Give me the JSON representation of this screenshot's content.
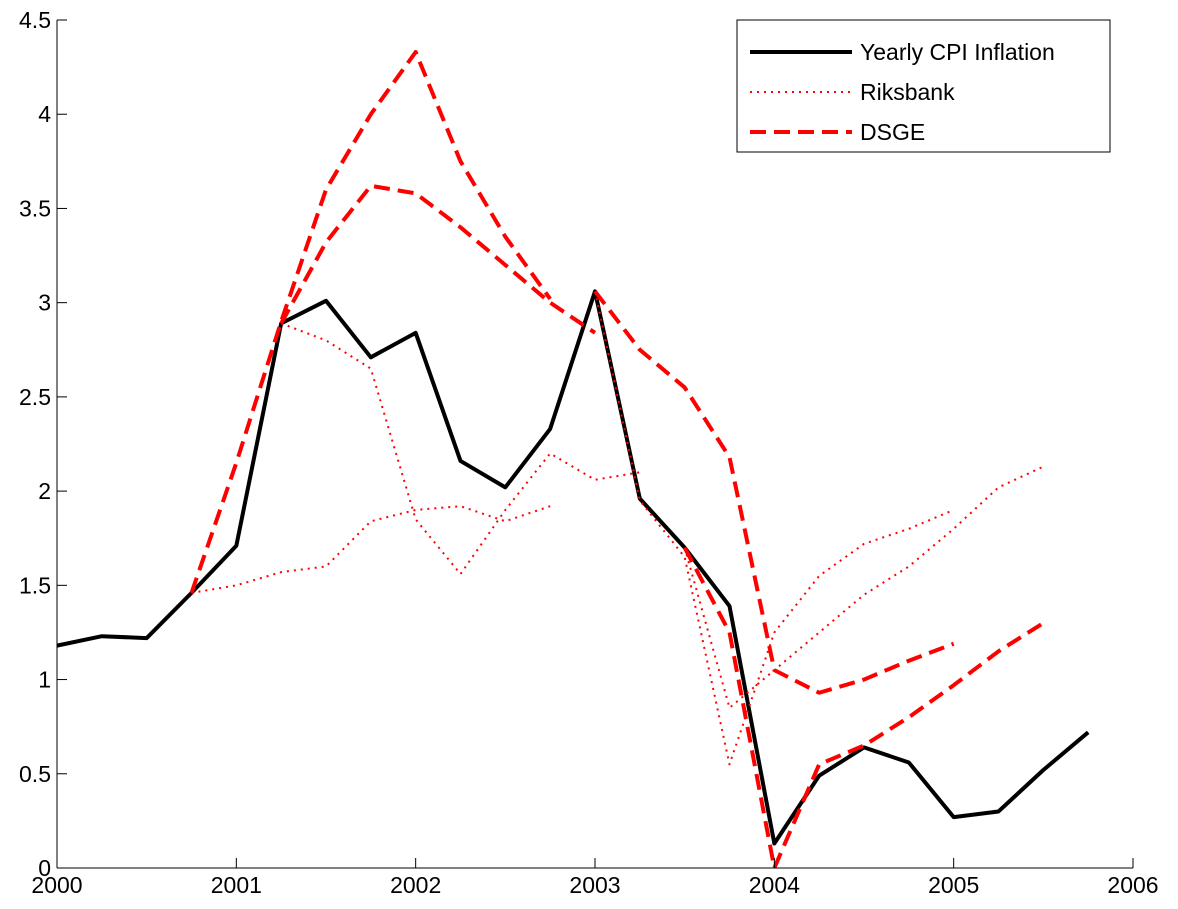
{
  "chart_data": {
    "type": "line",
    "xlim": [
      2000,
      2006
    ],
    "xticks": [
      2000,
      2001,
      2002,
      2003,
      2004,
      2005,
      2006
    ],
    "ylim": [
      0,
      4.5
    ],
    "yticks": [
      0,
      0.5,
      1,
      1.5,
      2,
      2.5,
      3,
      3.5,
      4,
      4.5
    ],
    "legend": "upper right",
    "series": [
      {
        "name": "Yearly CPI Inflation",
        "color": "#000000",
        "style": "solid",
        "lines": [
          {
            "x": [
              2000,
              2000.25,
              2000.5,
              2000.75,
              2001,
              2001.25,
              2001.5,
              2001.75,
              2002,
              2002.25,
              2002.5,
              2002.75,
              2003,
              2003.25,
              2003.5,
              2003.75,
              2004,
              2004.25,
              2004.5,
              2004.75,
              2005,
              2005.25,
              2005.5,
              2005.75
            ],
            "values": [
              1.18,
              1.23,
              1.22,
              1.46,
              1.71,
              2.89,
              3.01,
              2.71,
              2.84,
              2.16,
              2.02,
              2.33,
              3.06,
              1.96,
              1.7,
              1.39,
              0.13,
              0.49,
              0.64,
              0.56,
              0.27,
              0.3,
              0.52,
              0.72
            ]
          }
        ]
      },
      {
        "name": "Riksbank",
        "color": "#ff0000",
        "style": "dotted",
        "lines": [
          {
            "x": [
              2000.75,
              2001,
              2001.25,
              2001.5,
              2001.75,
              2002,
              2002.25,
              2002.5,
              2002.75
            ],
            "values": [
              1.46,
              1.5,
              1.57,
              1.6,
              1.84,
              1.9,
              1.92,
              1.84,
              1.92
            ]
          },
          {
            "x": [
              2001.25,
              2001.5,
              2001.75,
              2002,
              2002.25,
              2002.5,
              2002.75,
              2003,
              2003.25
            ],
            "values": [
              2.89,
              2.8,
              2.65,
              1.85,
              1.56,
              1.9,
              2.2,
              2.06,
              2.1
            ]
          },
          {
            "x": [
              2003,
              2003.25,
              2003.5,
              2003.75,
              2004,
              2004.25,
              2004.5,
              2004.75,
              2005
            ],
            "values": [
              3.06,
              1.95,
              1.65,
              0.55,
              1.25,
              1.55,
              1.72,
              1.8,
              1.9
            ]
          },
          {
            "x": [
              2003.5,
              2003.75,
              2004,
              2004.25,
              2004.5,
              2004.75,
              2005,
              2005.25,
              2005.5
            ],
            "values": [
              1.7,
              0.85,
              1.05,
              1.25,
              1.45,
              1.6,
              1.8,
              2.02,
              2.13
            ]
          }
        ]
      },
      {
        "name": "DSGE",
        "color": "#ff0000",
        "style": "dashed",
        "lines": [
          {
            "x": [
              2000.75,
              2001,
              2001.25,
              2001.5,
              2001.75,
              2002,
              2002.25,
              2002.5,
              2002.75
            ],
            "values": [
              1.46,
              2.15,
              2.9,
              3.6,
              4.0,
              4.33,
              3.75,
              3.35,
              3.02
            ]
          },
          {
            "x": [
              2001.25,
              2001.5,
              2001.75,
              2002,
              2002.25,
              2002.5,
              2002.75,
              2003
            ],
            "values": [
              2.89,
              3.32,
              3.62,
              3.58,
              3.4,
              3.2,
              3.0,
              2.84
            ]
          },
          {
            "x": [
              2003,
              2003.25,
              2003.5,
              2003.75,
              2004,
              2004.25,
              2004.5,
              2004.75,
              2005
            ],
            "values": [
              3.06,
              2.75,
              2.55,
              2.18,
              1.05,
              0.93,
              1.0,
              1.1,
              1.19
            ]
          },
          {
            "x": [
              2003.5,
              2003.75,
              2004,
              2004.25,
              2004.5,
              2004.75,
              2005,
              2005.25,
              2005.5
            ],
            "values": [
              1.7,
              1.25,
              0.0,
              0.55,
              0.65,
              0.8,
              0.97,
              1.15,
              1.3
            ]
          }
        ]
      }
    ]
  }
}
